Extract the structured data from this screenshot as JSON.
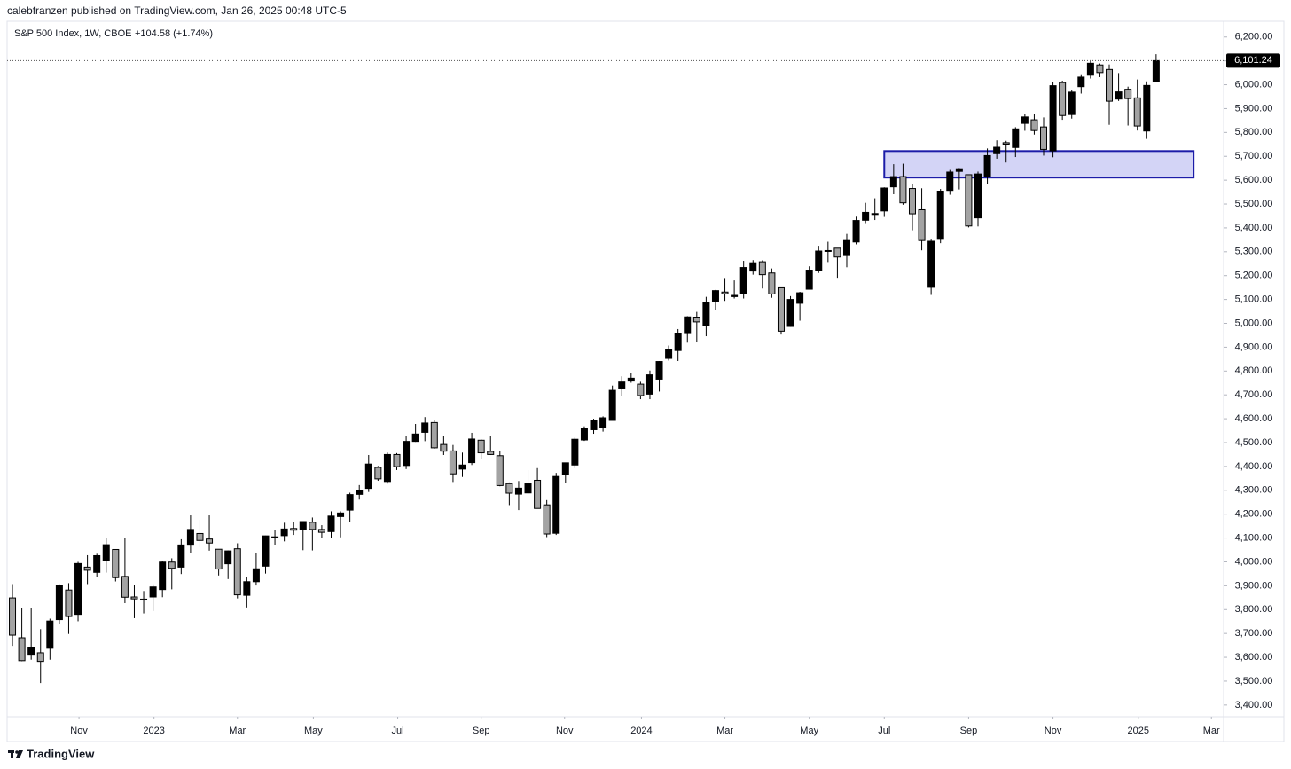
{
  "header": "calebfranzen published on TradingView.com, Jan 26, 2025 00:48 UTC-5",
  "footer": "TradingView",
  "chart_data": {
    "type": "candlestick",
    "title": "S&P 500 Index, 1W, CBOE",
    "change_label": "+104.58 (+1.74%)",
    "up_color": "#000000",
    "down_color": "#a3a3a3",
    "x": [
      0,
      1,
      2,
      3,
      4,
      5,
      6,
      7,
      8,
      9,
      10,
      11,
      12,
      13,
      14,
      15,
      16,
      17,
      18,
      19,
      20,
      21,
      22,
      23,
      24,
      25,
      26,
      27,
      28,
      29,
      30,
      31,
      32,
      33,
      34,
      35,
      36,
      37,
      38,
      39,
      40,
      41,
      42,
      43,
      44,
      45,
      46,
      47,
      48,
      49,
      50,
      51,
      52,
      53,
      54,
      55,
      56,
      57,
      58,
      59,
      60,
      61,
      62,
      63,
      64,
      65,
      66,
      67,
      68,
      69,
      70,
      71,
      72,
      73,
      74,
      75,
      76,
      77,
      78,
      79,
      80,
      81,
      82,
      83,
      84,
      85,
      86,
      87,
      88,
      89,
      90,
      91,
      92,
      93,
      94,
      95,
      96,
      97,
      98,
      99,
      100,
      101,
      102,
      103,
      104,
      105,
      106,
      107,
      108,
      109,
      110,
      111,
      112,
      113,
      114,
      115,
      116,
      117,
      118,
      119,
      120,
      121,
      122
    ],
    "open": [
      3849,
      3682,
      3609,
      3619,
      3638,
      3758,
      3882,
      3780,
      3978,
      3956,
      4006,
      4052,
      3939,
      3853,
      3844,
      3853,
      3884,
      3999,
      3978,
      4070,
      4119,
      4096,
      4053,
      3992,
      4055,
      3860,
      3917,
      3982,
      4102,
      4110,
      4140,
      4134,
      4166,
      4136,
      4127,
      4190,
      4217,
      4283,
      4308,
      4396,
      4337,
      4450,
      4404,
      4505,
      4543,
      4584,
      4492,
      4465,
      4389,
      4416,
      4510,
      4463,
      4445,
      4328,
      4284,
      4289,
      4342,
      4239,
      4120,
      4365,
      4406,
      4511,
      4554,
      4564,
      4593,
      4725,
      4758,
      4745,
      4703,
      4766,
      4853,
      4886,
      4957,
      5026,
      4989,
      5093,
      5131,
      5112,
      5123,
      5219,
      5258,
      5211,
      5149,
      4987,
      5084,
      5143,
      5221,
      5305,
      5315,
      5284,
      5341,
      5432,
      5460,
      5471,
      5572,
      5615,
      5565,
      5476,
      5151,
      5352,
      5557,
      5637,
      5623,
      5442,
      5615,
      5711,
      5757,
      5737,
      5838,
      5853,
      5823,
      5723,
      6009,
      5875,
      5992,
      6040,
      6083,
      6064,
      5940,
      5981,
      5945,
      5806,
      6014
    ],
    "high": [
      3907,
      3806,
      3807,
      3718,
      3762,
      3906,
      3911,
      4000,
      4028,
      4034,
      4101,
      4052,
      4101,
      3902,
      3878,
      3906,
      4003,
      4015,
      4095,
      4195,
      4176,
      4195,
      4053,
      4048,
      4078,
      3937,
      4039,
      4110,
      4133,
      4164,
      4169,
      4170,
      4186,
      4154,
      4212,
      4212,
      4290,
      4322,
      4448,
      4402,
      4458,
      4456,
      4527,
      4578,
      4607,
      4594,
      4527,
      4490,
      4458,
      4541,
      4514,
      4527,
      4466,
      4333,
      4339,
      4385,
      4393,
      4259,
      4373,
      4415,
      4521,
      4568,
      4600,
      4610,
      4739,
      4778,
      4793,
      4755,
      4802,
      4842,
      4907,
      4976,
      5030,
      5048,
      5111,
      5140,
      5190,
      5180,
      5262,
      5265,
      5264,
      5230,
      5150,
      5114,
      5132,
      5239,
      5325,
      5342,
      5315,
      5375,
      5447,
      5505,
      5524,
      5570,
      5667,
      5669,
      5585,
      5566,
      5351,
      5563,
      5643,
      5651,
      5623,
      5636,
      5733,
      5767,
      5765,
      5822,
      5879,
      5879,
      5863,
      6012,
      6017,
      5978,
      6044,
      6099,
      6089,
      6085,
      6049,
      5992,
      6022,
      6014,
      6128
    ],
    "low": [
      3648,
      3584,
      3590,
      3492,
      3590,
      3738,
      3698,
      3751,
      3907,
      3935,
      3955,
      3918,
      3827,
      3764,
      3784,
      3794,
      3852,
      3885,
      3949,
      4037,
      4061,
      4047,
      3943,
      3928,
      3847,
      3809,
      3901,
      3951,
      4069,
      4086,
      4113,
      4049,
      4048,
      4099,
      4099,
      4103,
      4166,
      4261,
      4293,
      4340,
      4328,
      4385,
      4389,
      4503,
      4506,
      4474,
      4448,
      4335,
      4356,
      4406,
      4430,
      4448,
      4317,
      4238,
      4217,
      4284,
      4223,
      4104,
      4113,
      4329,
      4393,
      4507,
      4537,
      4546,
      4593,
      4695,
      4751,
      4682,
      4682,
      4714,
      4844,
      4842,
      4919,
      4920,
      4946,
      5057,
      5094,
      5104,
      5104,
      5204,
      5146,
      5107,
      4953,
      4985,
      5011,
      5142,
      5211,
      5257,
      5191,
      5235,
      5331,
      5420,
      5433,
      5446,
      5541,
      5497,
      5390,
      5306,
      5119,
      5336,
      5539,
      5561,
      5402,
      5406,
      5584,
      5690,
      5674,
      5697,
      5807,
      5791,
      5703,
      5696,
      5853,
      5858,
      5963,
      6026,
      6032,
      5832,
      5932,
      5829,
      5808,
      5773,
      6014
    ],
    "close": [
      3693,
      3586,
      3640,
      3583,
      3752,
      3901,
      3771,
      3993,
      3965,
      4026,
      4072,
      3934,
      3852,
      3845,
      3840,
      3895,
      3999,
      3973,
      4071,
      4136,
      4090,
      4079,
      3970,
      4046,
      3862,
      3917,
      3971,
      4109,
      4105,
      4138,
      4133,
      4169,
      4136,
      4124,
      4192,
      4205,
      4282,
      4299,
      4410,
      4348,
      4450,
      4399,
      4505,
      4536,
      4582,
      4478,
      4464,
      4369,
      4406,
      4515,
      4457,
      4450,
      4320,
      4288,
      4309,
      4327,
      4224,
      4117,
      4358,
      4415,
      4514,
      4559,
      4594,
      4604,
      4719,
      4754,
      4770,
      4697,
      4784,
      4840,
      4891,
      4959,
      5027,
      5006,
      5089,
      5137,
      5124,
      5117,
      5234,
      5254,
      5204,
      5123,
      4967,
      5100,
      5128,
      5223,
      5303,
      5305,
      5278,
      5347,
      5431,
      5465,
      5460,
      5567,
      5615,
      5505,
      5459,
      5347,
      5344,
      5554,
      5634,
      5648,
      5408,
      5626,
      5703,
      5738,
      5751,
      5815,
      5865,
      5808,
      5729,
      5996,
      5871,
      5969,
      6032,
      6090,
      6051,
      5931,
      5970,
      5942,
      5827,
      5997,
      6101
    ],
    "xlim": [
      -0.57,
      129.2
    ],
    "xticks": [
      {
        "value": 7.1,
        "label": "Nov"
      },
      {
        "value": 15.1,
        "label": "2023"
      },
      {
        "value": 24.0,
        "label": "Mar"
      },
      {
        "value": 32.1,
        "label": "May"
      },
      {
        "value": 41.1,
        "label": "Jul"
      },
      {
        "value": 50.0,
        "label": "Sep"
      },
      {
        "value": 58.9,
        "label": "Nov"
      },
      {
        "value": 67.1,
        "label": "2024"
      },
      {
        "value": 76.0,
        "label": "Mar"
      },
      {
        "value": 85.0,
        "label": "May"
      },
      {
        "value": 93.0,
        "label": "Jul"
      },
      {
        "value": 102.0,
        "label": "Sep"
      },
      {
        "value": 111.0,
        "label": "Nov"
      },
      {
        "value": 120.1,
        "label": "2025"
      },
      {
        "value": 127.9,
        "label": "Mar"
      }
    ],
    "ylim": [
      3247,
      6266
    ],
    "yticks": [
      {
        "value": 3400,
        "label": "3,400.00"
      },
      {
        "value": 3500,
        "label": "3,500.00"
      },
      {
        "value": 3600,
        "label": "3,600.00"
      },
      {
        "value": 3700,
        "label": "3,700.00"
      },
      {
        "value": 3800,
        "label": "3,800.00"
      },
      {
        "value": 3900,
        "label": "3,900.00"
      },
      {
        "value": 4000,
        "label": "4,000.00"
      },
      {
        "value": 4100,
        "label": "4,100.00"
      },
      {
        "value": 4200,
        "label": "4,200.00"
      },
      {
        "value": 4300,
        "label": "4,300.00"
      },
      {
        "value": 4400,
        "label": "4,400.00"
      },
      {
        "value": 4500,
        "label": "4,500.00"
      },
      {
        "value": 4600,
        "label": "4,600.00"
      },
      {
        "value": 4700,
        "label": "4,700.00"
      },
      {
        "value": 4800,
        "label": "4,800.00"
      },
      {
        "value": 4900,
        "label": "4,900.00"
      },
      {
        "value": 5000,
        "label": "5,000.00"
      },
      {
        "value": 5100,
        "label": "5,100.00"
      },
      {
        "value": 5200,
        "label": "5,200.00"
      },
      {
        "value": 5300,
        "label": "5,300.00"
      },
      {
        "value": 5400,
        "label": "5,400.00"
      },
      {
        "value": 5500,
        "label": "5,500.00"
      },
      {
        "value": 5600,
        "label": "5,600.00"
      },
      {
        "value": 5700,
        "label": "5,700.00"
      },
      {
        "value": 5800,
        "label": "5,800.00"
      },
      {
        "value": 5900,
        "label": "5,900.00"
      },
      {
        "value": 6000,
        "label": "6,000.00"
      },
      {
        "value": 6100,
        "label": "6,100.00"
      },
      {
        "value": 6200,
        "label": "6,200.00"
      }
    ],
    "last_price": {
      "value": 6101.24,
      "label": "6,101.24"
    },
    "zone": {
      "x": [
        93.0,
        126.0
      ],
      "y": [
        5611,
        5722
      ],
      "color": "#d3d4f6",
      "border_color": "#1c1ca8"
    }
  }
}
